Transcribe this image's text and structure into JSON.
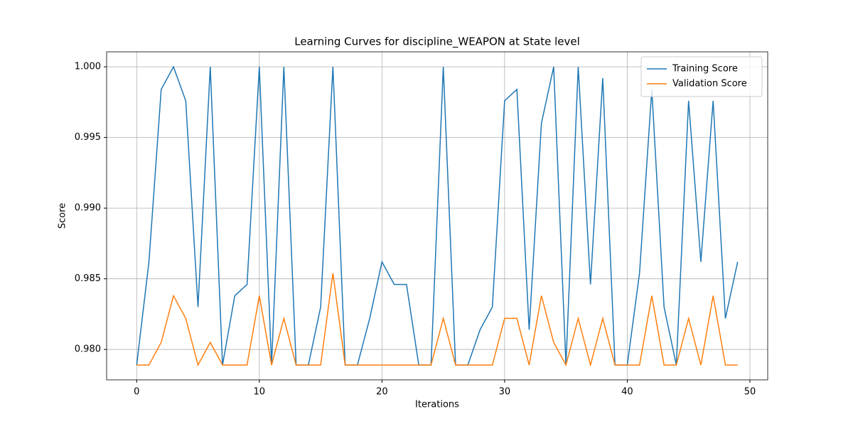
{
  "chart_data": {
    "type": "line",
    "title": "Learning Curves for discipline_WEAPON at State level",
    "x_label": "Iterations",
    "y_label": "Score",
    "x": [
      0,
      1,
      2,
      3,
      4,
      5,
      6,
      7,
      8,
      9,
      10,
      11,
      12,
      13,
      14,
      15,
      16,
      17,
      18,
      19,
      20,
      21,
      22,
      23,
      24,
      25,
      26,
      27,
      28,
      29,
      30,
      31,
      32,
      33,
      34,
      35,
      36,
      37,
      38,
      39,
      40,
      41,
      42,
      43,
      44,
      45,
      46,
      47,
      48,
      49
    ],
    "series": [
      {
        "name": "Training Score",
        "color": "#1f77b4",
        "values": [
          0.9789,
          0.9862,
          0.9984,
          1.0,
          0.9976,
          0.983,
          1.0,
          0.9789,
          0.9838,
          0.9846,
          1.0,
          0.9789,
          1.0,
          0.9789,
          0.9789,
          0.983,
          1.0,
          0.9789,
          0.9789,
          0.9822,
          0.9862,
          0.9846,
          0.9846,
          0.9789,
          0.9789,
          1.0,
          0.9789,
          0.9789,
          0.9814,
          0.983,
          0.9976,
          0.9984,
          0.9814,
          0.996,
          1.0,
          0.9789,
          1.0,
          0.9846,
          0.9992,
          0.9789,
          0.9789,
          0.9854,
          0.9984,
          0.983,
          0.9789,
          0.9976,
          0.9862,
          0.9976,
          0.9822,
          0.9862
        ]
      },
      {
        "name": "Validation Score",
        "color": "#ff7f0e",
        "values": [
          0.9789,
          0.9789,
          0.9805,
          0.9838,
          0.9822,
          0.9789,
          0.9805,
          0.9789,
          0.9789,
          0.9789,
          0.9838,
          0.9789,
          0.9822,
          0.9789,
          0.9789,
          0.9789,
          0.9854,
          0.9789,
          0.9789,
          0.9789,
          0.9789,
          0.9789,
          0.9789,
          0.9789,
          0.9789,
          0.9822,
          0.9789,
          0.9789,
          0.9789,
          0.9789,
          0.9822,
          0.9822,
          0.9789,
          0.9838,
          0.9805,
          0.9789,
          0.9822,
          0.9789,
          0.9822,
          0.9789,
          0.9789,
          0.9789,
          0.9838,
          0.9789,
          0.9789,
          0.9822,
          0.9789,
          0.9838,
          0.9789,
          0.9789
        ]
      }
    ],
    "xlim": [
      -2.45,
      51.45
    ],
    "ylim": [
      0.97785,
      1.00106
    ],
    "xticks": [
      0,
      10,
      20,
      30,
      40,
      50
    ],
    "yticks": [
      {
        "value": 0.98,
        "label": "0.980"
      },
      {
        "value": 0.985,
        "label": "0.985"
      },
      {
        "value": 0.99,
        "label": "0.990"
      },
      {
        "value": 0.995,
        "label": "0.995"
      },
      {
        "value": 1.0,
        "label": "1.000"
      }
    ],
    "grid": true,
    "legend": "upper right"
  }
}
